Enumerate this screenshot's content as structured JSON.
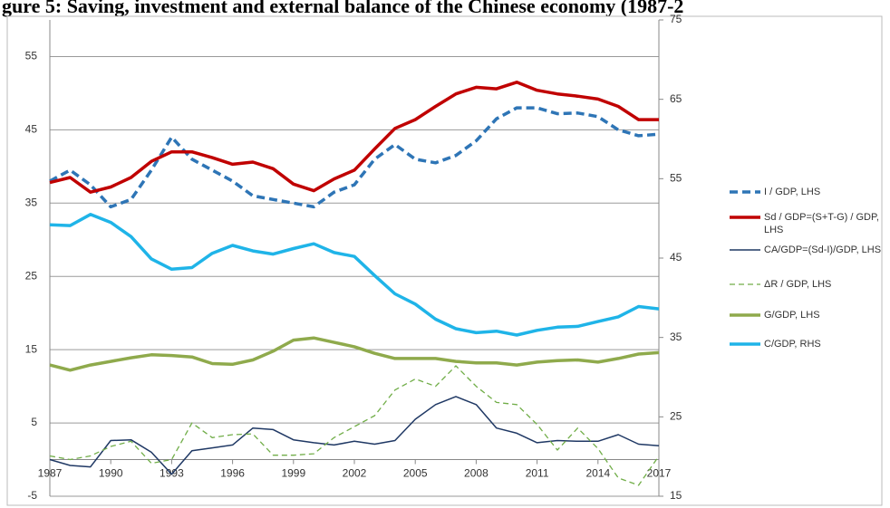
{
  "chart_data": {
    "type": "line",
    "title": "gure 5: Saving, investment and external balance of the Chinese economy (1987-2",
    "x": [
      1987,
      1988,
      1989,
      1990,
      1991,
      1992,
      1993,
      1994,
      1995,
      1996,
      1997,
      1998,
      1999,
      2000,
      2001,
      2002,
      2003,
      2004,
      2005,
      2006,
      2007,
      2008,
      2009,
      2010,
      2011,
      2012,
      2013,
      2014,
      2015,
      2016,
      2017
    ],
    "xlim": [
      1987,
      2017
    ],
    "xticks": [
      1987,
      1990,
      1993,
      1996,
      1999,
      2002,
      2005,
      2008,
      2011,
      2014,
      2017
    ],
    "ylim": [
      -5,
      60
    ],
    "yticks": [
      -5,
      5,
      15,
      25,
      35,
      45,
      55
    ],
    "y2lim": [
      15,
      75
    ],
    "y2ticks": [
      15,
      25,
      35,
      45,
      55,
      65,
      75
    ],
    "grid": true,
    "series": [
      {
        "name": "I / GDP, LHS",
        "color": "#2e75b6",
        "style": "dashed",
        "values": [
          38,
          39.5,
          37.5,
          34.5,
          35.5,
          39.5,
          44,
          41,
          39.5,
          38,
          36,
          35.5,
          35,
          34.5,
          36.5,
          37.5,
          41,
          43,
          41,
          40.5,
          41.5,
          43.5,
          46.5,
          48,
          48,
          47.2,
          47.3,
          46.8,
          45,
          44.2,
          44.4
        ]
      },
      {
        "name": "Sd / GDP=(S+T-G) / GDP, LHS",
        "color": "#c00000",
        "style": "solid",
        "values": [
          37.8,
          38.5,
          36.5,
          37.2,
          38.5,
          40.7,
          42,
          42,
          41.2,
          40.3,
          40.6,
          39.7,
          37.6,
          36.7,
          38.3,
          39.5,
          42.4,
          45.2,
          46.4,
          48.2,
          49.9,
          50.8,
          50.6,
          51.5,
          50.4,
          49.9,
          49.6,
          49.2,
          48.2,
          46.4,
          46.4
        ]
      },
      {
        "name": "CA/GDP=(Sd-I)/GDP, LHS",
        "color": "#1f3864",
        "style": "thin",
        "values": [
          0,
          -0.8,
          -1,
          2.6,
          2.7,
          1,
          -2,
          1.2,
          1.6,
          2,
          4.3,
          4.1,
          2.7,
          2.3,
          2,
          2.5,
          2.1,
          2.6,
          5.5,
          7.5,
          8.6,
          7.5,
          4.3,
          3.6,
          2.3,
          2.6,
          2.5,
          2.5,
          3.4,
          2.1,
          1.9
        ]
      },
      {
        "name": "ΔR / GDP, LHS",
        "color": "#70ad47",
        "style": "thin-dashed",
        "values": [
          0.5,
          0,
          0.5,
          1.8,
          2.5,
          -0.5,
          0,
          5,
          3,
          3.4,
          3.5,
          0.6,
          0.6,
          0.8,
          3,
          4.5,
          6,
          9.5,
          11,
          10,
          12.8,
          10,
          7.8,
          7.5,
          4.8,
          1.3,
          4.3,
          1.5,
          -2.5,
          -3.5,
          0.5
        ]
      },
      {
        "name": "G/GDP, LHS",
        "color": "#8faa4c",
        "style": "solid",
        "values": [
          12.9,
          12.2,
          12.9,
          13.4,
          13.9,
          14.3,
          14.2,
          14,
          13.1,
          13,
          13.6,
          14.8,
          16.3,
          16.6,
          16,
          15.4,
          14.5,
          13.8,
          13.8,
          13.8,
          13.4,
          13.2,
          13.2,
          12.9,
          13.3,
          13.5,
          13.6,
          13.3,
          13.8,
          14.4,
          14.6
        ]
      },
      {
        "name": "C/GDP, RHS",
        "color": "#1fb4e8",
        "style": "solid",
        "axis": "y2",
        "values": [
          49.2,
          49.1,
          50.5,
          49.5,
          47.7,
          44.9,
          43.6,
          43.8,
          45.6,
          46.6,
          45.9,
          45.5,
          46.2,
          46.8,
          45.7,
          45.2,
          42.8,
          40.5,
          39.2,
          37.3,
          36.1,
          35.6,
          35.8,
          35.3,
          35.9,
          36.3,
          36.4,
          37,
          37.6,
          38.9,
          38.6
        ]
      }
    ]
  }
}
